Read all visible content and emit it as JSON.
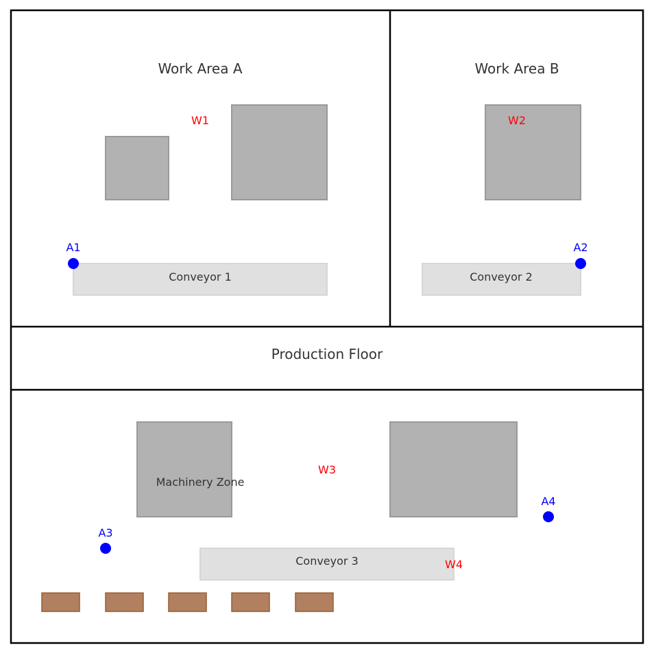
{
  "areas": {
    "work_area_a": "Work Area A",
    "work_area_b": "Work Area B",
    "production_floor": "Production Floor",
    "machinery_zone": "Machinery Zone"
  },
  "conveyors": {
    "c1": "Conveyor 1",
    "c2": "Conveyor 2",
    "c3": "Conveyor 3"
  },
  "workers": {
    "w1": "W1",
    "w2": "W2",
    "w3": "W3",
    "w4": "W4"
  },
  "access_points": {
    "a1": "A1",
    "a2": "A2",
    "a3": "A3",
    "a4": "A4"
  },
  "colors": {
    "worker": "#ff0000",
    "access_point": "#0000ff",
    "machine": "#b2b2b2",
    "conveyor": "#e0e0e0",
    "pallet": "#b08060"
  }
}
